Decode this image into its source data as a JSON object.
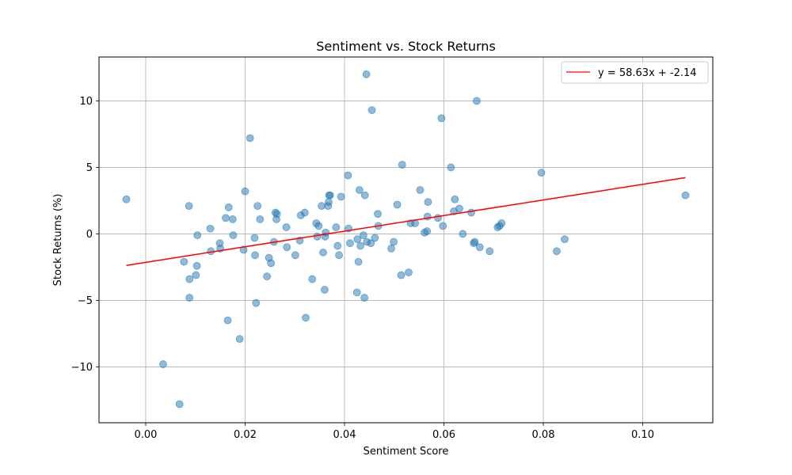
{
  "chart_data": {
    "type": "scatter",
    "title": "Sentiment vs. Stock Returns",
    "xlabel": "Sentiment Score",
    "ylabel": "Stock Returns (%)",
    "xlim": [
      -0.0094,
      0.1141
    ],
    "ylim": [
      -14.2,
      13.3
    ],
    "xticks": [
      0.0,
      0.02,
      0.04,
      0.06,
      0.08,
      0.1
    ],
    "xtick_labels": [
      "0.00",
      "0.02",
      "0.04",
      "0.06",
      "0.08",
      "0.10"
    ],
    "yticks": [
      -10,
      -5,
      0,
      5,
      10
    ],
    "ytick_labels": [
      "−10",
      "−5",
      "0",
      "5",
      "10"
    ],
    "grid": true,
    "legend_position": "top-right",
    "colors": {
      "points": "#1f77b4",
      "fit_line": "#ff0000",
      "grid": "#b0b0b0"
    },
    "fit_line": {
      "label": "y = 58.63x + -2.14",
      "slope": 58.63,
      "intercept": -2.14,
      "x_range": [
        -0.0039,
        0.1086
      ]
    },
    "points": [
      [
        -0.0039,
        2.6
      ],
      [
        0.0035,
        -9.8
      ],
      [
        0.0068,
        -12.8
      ],
      [
        0.0077,
        -2.1
      ],
      [
        0.0087,
        2.1
      ],
      [
        0.0088,
        -3.4
      ],
      [
        0.0088,
        -4.8
      ],
      [
        0.0101,
        -3.1
      ],
      [
        0.0103,
        -2.4
      ],
      [
        0.0104,
        -0.1
      ],
      [
        0.013,
        0.4
      ],
      [
        0.0131,
        -1.3
      ],
      [
        0.0149,
        -0.7
      ],
      [
        0.015,
        -1.1
      ],
      [
        0.0161,
        1.2
      ],
      [
        0.0165,
        -6.5
      ],
      [
        0.0167,
        2.0
      ],
      [
        0.0175,
        1.1
      ],
      [
        0.0176,
        -0.1
      ],
      [
        0.0189,
        -7.9
      ],
      [
        0.0197,
        -1.2
      ],
      [
        0.02,
        3.2
      ],
      [
        0.021,
        7.2
      ],
      [
        0.0219,
        -0.3
      ],
      [
        0.022,
        -1.6
      ],
      [
        0.0222,
        -5.2
      ],
      [
        0.0225,
        2.1
      ],
      [
        0.023,
        1.1
      ],
      [
        0.0244,
        -3.2
      ],
      [
        0.0248,
        -1.8
      ],
      [
        0.0252,
        -2.2
      ],
      [
        0.0258,
        -0.6
      ],
      [
        0.0261,
        1.6
      ],
      [
        0.0263,
        1.1
      ],
      [
        0.0264,
        1.5
      ],
      [
        0.0283,
        0.5
      ],
      [
        0.0284,
        -1.0
      ],
      [
        0.0301,
        -1.6
      ],
      [
        0.031,
        -0.5
      ],
      [
        0.0312,
        1.4
      ],
      [
        0.032,
        1.6
      ],
      [
        0.0322,
        -6.3
      ],
      [
        0.0335,
        -3.4
      ],
      [
        0.0343,
        0.8
      ],
      [
        0.0345,
        -0.2
      ],
      [
        0.0348,
        0.6
      ],
      [
        0.0354,
        2.1
      ],
      [
        0.0357,
        -1.4
      ],
      [
        0.036,
        -4.2
      ],
      [
        0.0361,
        -0.2
      ],
      [
        0.0362,
        0.1
      ],
      [
        0.0367,
        2.1
      ],
      [
        0.0368,
        2.4
      ],
      [
        0.0369,
        2.9
      ],
      [
        0.0371,
        2.9
      ],
      [
        0.0383,
        0.5
      ],
      [
        0.0386,
        -0.9
      ],
      [
        0.0389,
        -1.6
      ],
      [
        0.0393,
        2.8
      ],
      [
        0.0407,
        4.4
      ],
      [
        0.0408,
        0.4
      ],
      [
        0.0411,
        -0.7
      ],
      [
        0.0425,
        -4.4
      ],
      [
        0.0426,
        -0.4
      ],
      [
        0.0428,
        -2.1
      ],
      [
        0.043,
        3.3
      ],
      [
        0.0432,
        -0.9
      ],
      [
        0.0438,
        -0.1
      ],
      [
        0.044,
        -4.8
      ],
      [
        0.0441,
        2.9
      ],
      [
        0.0444,
        12.0
      ],
      [
        0.0445,
        -0.6
      ],
      [
        0.0453,
        -0.7
      ],
      [
        0.0455,
        9.3
      ],
      [
        0.0461,
        -0.3
      ],
      [
        0.0467,
        1.5
      ],
      [
        0.0468,
        0.6
      ],
      [
        0.0494,
        -1.1
      ],
      [
        0.0499,
        -0.6
      ],
      [
        0.0506,
        2.2
      ],
      [
        0.0514,
        -3.1
      ],
      [
        0.0516,
        5.2
      ],
      [
        0.0529,
        -2.9
      ],
      [
        0.0533,
        0.8
      ],
      [
        0.0542,
        0.8
      ],
      [
        0.0552,
        3.3
      ],
      [
        0.0561,
        0.1
      ],
      [
        0.0566,
        0.2
      ],
      [
        0.0567,
        1.3
      ],
      [
        0.0568,
        2.4
      ],
      [
        0.0588,
        1.2
      ],
      [
        0.0595,
        8.7
      ],
      [
        0.0598,
        0.6
      ],
      [
        0.0614,
        5.0
      ],
      [
        0.062,
        1.7
      ],
      [
        0.0622,
        2.6
      ],
      [
        0.0631,
        1.9
      ],
      [
        0.0638,
        0.0
      ],
      [
        0.0655,
        1.6
      ],
      [
        0.066,
        -0.7
      ],
      [
        0.0662,
        -0.6
      ],
      [
        0.0666,
        10.0
      ],
      [
        0.0672,
        -1.0
      ],
      [
        0.0692,
        -1.3
      ],
      [
        0.0708,
        0.5
      ],
      [
        0.0712,
        0.6
      ],
      [
        0.0716,
        0.8
      ],
      [
        0.0796,
        4.6
      ],
      [
        0.0827,
        -1.3
      ],
      [
        0.0843,
        -0.4
      ],
      [
        0.1086,
        2.9
      ]
    ]
  }
}
